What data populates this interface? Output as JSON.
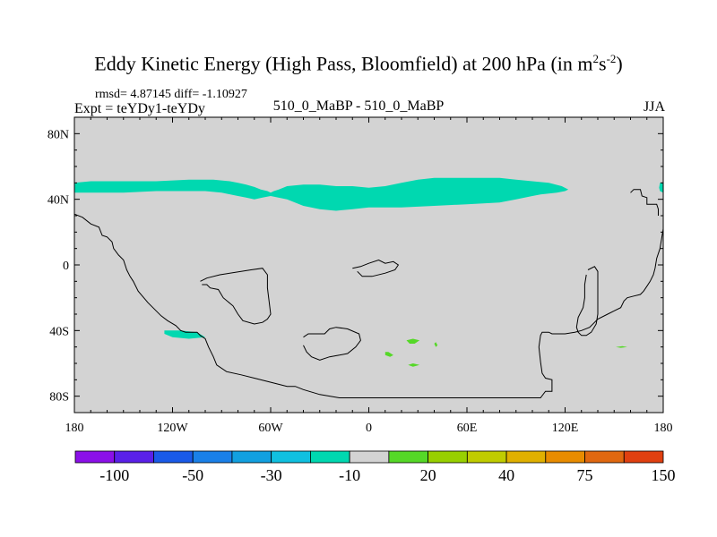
{
  "title_main": "Eddy Kinetic Energy (High Pass, Bloomfield) at 200 hPa (in m",
  "title_sup1": "2",
  "title_mid": "s",
  "title_sup2": "-2",
  "title_end": ")",
  "stats": "rmsd= 4.87145 diff= -1.10927",
  "expt_label": "Expt = teYDy1-teYDy",
  "experiment": "510_0_MaBP - 510_0_MaBP",
  "season": "JJA",
  "colors": {
    "background_field": "#d3d3d3",
    "anomaly_neg10": "#00d8b0",
    "anomaly_pos20": "#55d827",
    "coast": "#000000"
  },
  "chart_data": {
    "type": "heatmap",
    "projection": "cylindrical equidistant",
    "xlim": [
      -180,
      180
    ],
    "ylim": [
      -90,
      90
    ],
    "x_ticks": [
      {
        "value": -180,
        "label": "180"
      },
      {
        "value": -120,
        "label": "120W"
      },
      {
        "value": -60,
        "label": "60W"
      },
      {
        "value": 0,
        "label": "0"
      },
      {
        "value": 60,
        "label": "60E"
      },
      {
        "value": 120,
        "label": "120E"
      },
      {
        "value": 180,
        "label": "180"
      }
    ],
    "y_ticks": [
      {
        "value": 80,
        "label": "80N"
      },
      {
        "value": 40,
        "label": "40N"
      },
      {
        "value": 0,
        "label": "0"
      },
      {
        "value": -40,
        "label": "40S"
      },
      {
        "value": -80,
        "label": "80S"
      }
    ],
    "shaded_regions": [
      {
        "name": "NH jet band",
        "level": -10,
        "outline": [
          [
            -180,
            50
          ],
          [
            -170,
            51
          ],
          [
            -160,
            51
          ],
          [
            -150,
            51
          ],
          [
            -130,
            51
          ],
          [
            -110,
            52
          ],
          [
            -95,
            52
          ],
          [
            -85,
            51
          ],
          [
            -80,
            50
          ],
          [
            -75,
            49
          ],
          [
            -70,
            47.5
          ],
          [
            -66,
            46
          ],
          [
            -62,
            45
          ],
          [
            -60,
            44
          ],
          [
            -58,
            45
          ],
          [
            -55,
            46
          ],
          [
            -50,
            48
          ],
          [
            -40,
            49
          ],
          [
            -30,
            49
          ],
          [
            -20,
            48
          ],
          [
            -10,
            48
          ],
          [
            0,
            47
          ],
          [
            10,
            48
          ],
          [
            20,
            50
          ],
          [
            30,
            52
          ],
          [
            40,
            53
          ],
          [
            50,
            53
          ],
          [
            60,
            53
          ],
          [
            70,
            53
          ],
          [
            80,
            53
          ],
          [
            90,
            52
          ],
          [
            100,
            51
          ],
          [
            110,
            50
          ],
          [
            118,
            48
          ],
          [
            122,
            46
          ],
          [
            120,
            45
          ],
          [
            115,
            44
          ],
          [
            105,
            43
          ],
          [
            100,
            42
          ],
          [
            90,
            40
          ],
          [
            80,
            38
          ],
          [
            60,
            37
          ],
          [
            40,
            36
          ],
          [
            20,
            35
          ],
          [
            10,
            35
          ],
          [
            0,
            35
          ],
          [
            -10,
            34
          ],
          [
            -20,
            33
          ],
          [
            -30,
            34
          ],
          [
            -40,
            36
          ],
          [
            -50,
            40
          ],
          [
            -60,
            42
          ],
          [
            -65,
            41
          ],
          [
            -70,
            40
          ],
          [
            -75,
            41
          ],
          [
            -80,
            42
          ],
          [
            -90,
            44
          ],
          [
            -100,
            45
          ],
          [
            -110,
            45
          ],
          [
            -130,
            45
          ],
          [
            -150,
            44
          ],
          [
            -170,
            44
          ],
          [
            -180,
            44
          ]
        ]
      },
      {
        "name": "NH jet east end",
        "level": -10,
        "outline": [
          [
            178,
            50
          ],
          [
            180,
            50
          ],
          [
            180,
            44
          ],
          [
            178,
            45
          ],
          [
            177.5,
            47
          ]
        ]
      },
      {
        "name": "SH patch",
        "level": -10,
        "outline": [
          [
            -125,
            -40
          ],
          [
            -115,
            -40
          ],
          [
            -105,
            -41
          ],
          [
            -100,
            -44
          ],
          [
            -110,
            -45
          ],
          [
            -120,
            -44
          ],
          [
            -125,
            -42
          ]
        ]
      },
      {
        "name": "SH pos 1",
        "level": 20,
        "outline": [
          [
            10,
            -53
          ],
          [
            12,
            -53
          ],
          [
            15,
            -55
          ],
          [
            13,
            -56
          ],
          [
            10,
            -55
          ]
        ]
      },
      {
        "name": "SH pos 2",
        "level": 20,
        "outline": [
          [
            23,
            -46
          ],
          [
            27,
            -45
          ],
          [
            31,
            -46
          ],
          [
            28,
            -48
          ],
          [
            25,
            -48
          ]
        ]
      },
      {
        "name": "SH pos 3",
        "level": 20,
        "outline": [
          [
            24,
            -61
          ],
          [
            27,
            -60
          ],
          [
            31,
            -61
          ],
          [
            27,
            -62
          ]
        ]
      },
      {
        "name": "SH pos 4",
        "level": 20,
        "outline": [
          [
            40,
            -48
          ],
          [
            41,
            -47
          ],
          [
            42,
            -49
          ],
          [
            41,
            -50
          ]
        ]
      },
      {
        "name": "SH pos 5",
        "level": 20,
        "outline": [
          [
            151,
            -50
          ],
          [
            155,
            -49.5
          ],
          [
            158,
            -50
          ],
          [
            154,
            -50.5
          ]
        ]
      }
    ],
    "colorbar": {
      "colors": [
        "#8b10e8",
        "#5a20e8",
        "#1a5ae8",
        "#1a80e8",
        "#12a0e0",
        "#10c0e0",
        "#00d8b0",
        "#d3d3d3",
        "#55d827",
        "#98d000",
        "#c0cc00",
        "#e0b000",
        "#e88c00",
        "#e06810",
        "#e04010"
      ],
      "labels": [
        {
          "boundary": 1,
          "text": "-100"
        },
        {
          "boundary": 3,
          "text": "-50"
        },
        {
          "boundary": 5,
          "text": "-30"
        },
        {
          "boundary": 7,
          "text": "-10"
        },
        {
          "boundary": 9,
          "text": "20"
        },
        {
          "boundary": 11,
          "text": "40"
        },
        {
          "boundary": 13,
          "text": "75"
        },
        {
          "boundary": 15,
          "text": "150"
        }
      ]
    }
  },
  "coastlines": [
    [
      [
        -180,
        31
      ],
      [
        -175,
        29
      ],
      [
        -170,
        25
      ],
      [
        -165,
        23
      ],
      [
        -163,
        18
      ],
      [
        -160,
        17
      ],
      [
        -157,
        14
      ],
      [
        -156,
        10
      ],
      [
        -153,
        6
      ],
      [
        -150,
        3
      ],
      [
        -148,
        -3
      ],
      [
        -146,
        -7
      ],
      [
        -144,
        -10
      ],
      [
        -141,
        -16
      ],
      [
        -135,
        -23
      ],
      [
        -127,
        -31
      ],
      [
        -123,
        -34
      ],
      [
        -118,
        -37
      ],
      [
        -115,
        -40
      ],
      [
        -112,
        -41
      ],
      [
        -105,
        -41
      ],
      [
        -103,
        -43
      ],
      [
        -100,
        -45
      ],
      [
        -98,
        -50
      ],
      [
        -95,
        -56
      ],
      [
        -93,
        -61
      ],
      [
        -87,
        -65
      ],
      [
        -78,
        -67
      ],
      [
        -70,
        -69
      ],
      [
        -58,
        -72
      ],
      [
        -50,
        -74
      ],
      [
        -45,
        -74
      ],
      [
        -40,
        -76
      ],
      [
        -30,
        -79
      ],
      [
        -18,
        -81
      ],
      [
        0,
        -81
      ],
      [
        30,
        -81
      ],
      [
        60,
        -81
      ],
      [
        90,
        -81
      ],
      [
        105,
        -81
      ],
      [
        108,
        -77
      ],
      [
        112,
        -77
      ],
      [
        112,
        -70
      ],
      [
        108,
        -69
      ],
      [
        106,
        -66
      ],
      [
        105,
        -59
      ],
      [
        104,
        -50
      ],
      [
        105,
        -43
      ],
      [
        106,
        -41
      ],
      [
        110,
        -41
      ],
      [
        112,
        -42
      ],
      [
        120,
        -42
      ],
      [
        126,
        -41
      ],
      [
        130,
        -40
      ],
      [
        135,
        -38
      ],
      [
        138,
        -35
      ],
      [
        140,
        -33
      ],
      [
        146,
        -30
      ],
      [
        150,
        -28
      ],
      [
        154,
        -26
      ],
      [
        156,
        -22
      ],
      [
        158,
        -20
      ],
      [
        162,
        -19
      ],
      [
        166,
        -18
      ],
      [
        168,
        -16
      ],
      [
        170,
        -13
      ],
      [
        172,
        -10
      ],
      [
        174,
        -6
      ],
      [
        175,
        -2
      ],
      [
        176,
        4
      ],
      [
        178,
        10
      ],
      [
        179,
        16
      ],
      [
        180,
        22
      ]
    ],
    [
      [
        -40,
        -44
      ],
      [
        -37,
        -42
      ],
      [
        -27,
        -42
      ],
      [
        -24,
        -39
      ],
      [
        -20,
        -38
      ],
      [
        -13,
        -39
      ],
      [
        -6,
        -42
      ],
      [
        -5,
        -46
      ],
      [
        -8,
        -50
      ],
      [
        -13,
        -54
      ],
      [
        -18,
        -55
      ],
      [
        -24,
        -56
      ],
      [
        -30,
        -58
      ],
      [
        -35,
        -56
      ],
      [
        -38,
        -53
      ],
      [
        -40,
        -49
      ]
    ],
    [
      [
        -103,
        -10
      ],
      [
        -99,
        -8
      ],
      [
        -91,
        -6
      ],
      [
        -72,
        -3
      ],
      [
        -65,
        -2
      ],
      [
        -62,
        -6
      ],
      [
        -62,
        -14
      ],
      [
        -61,
        -22
      ],
      [
        -60,
        -30
      ],
      [
        -62,
        -33
      ],
      [
        -65,
        -35
      ],
      [
        -70,
        -36
      ],
      [
        -77,
        -34
      ],
      [
        -80,
        -30
      ],
      [
        -83,
        -25
      ],
      [
        -89,
        -20
      ],
      [
        -92,
        -15
      ],
      [
        -97,
        -14
      ],
      [
        -99,
        -12
      ],
      [
        -102,
        -12
      ]
    ],
    [
      [
        -10,
        -2
      ],
      [
        -5,
        -1
      ],
      [
        0,
        1
      ],
      [
        6,
        3
      ],
      [
        10,
        1
      ],
      [
        15,
        2
      ],
      [
        18,
        0
      ],
      [
        16,
        -3
      ],
      [
        10,
        -5
      ],
      [
        2,
        -7
      ],
      [
        -4,
        -7
      ],
      [
        -7,
        -4
      ]
    ],
    [
      [
        134,
        -3
      ],
      [
        138,
        -1
      ],
      [
        140,
        -4
      ],
      [
        140,
        -18
      ],
      [
        140,
        -30
      ],
      [
        139,
        -36
      ],
      [
        136,
        -41
      ],
      [
        133,
        -43
      ],
      [
        130,
        -43
      ],
      [
        128,
        -41
      ],
      [
        127,
        -38
      ],
      [
        128,
        -32
      ],
      [
        131,
        -26
      ],
      [
        132,
        -20
      ],
      [
        132,
        -12
      ],
      [
        133,
        -6
      ]
    ],
    [
      [
        160,
        44
      ],
      [
        162,
        46
      ],
      [
        166,
        46
      ],
      [
        167,
        42
      ],
      [
        170,
        41
      ],
      [
        170,
        37
      ],
      [
        176,
        37
      ],
      [
        177,
        34
      ],
      [
        177,
        30
      ]
    ]
  ]
}
